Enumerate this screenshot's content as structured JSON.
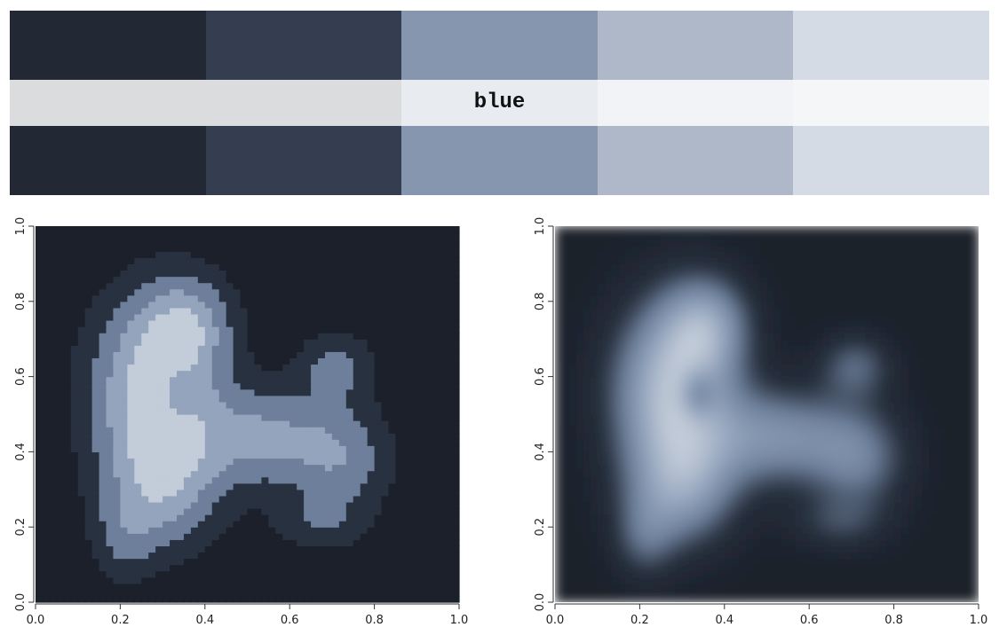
{
  "palette": {
    "label": "blue",
    "colors": [
      "#222834",
      "#343e50",
      "#8596ae",
      "#aeb8c9",
      "#d5dbe5"
    ],
    "light_colors": [
      "#dbdcde",
      "#dbdcde",
      "#e8ebf0",
      "#f1f3f6",
      "#f5f6f8"
    ]
  },
  "chart_data": [
    {
      "type": "heatmap",
      "style": "filled-contour",
      "levels": 5,
      "colors": [
        "#1b202a",
        "#28313f",
        "#6d7f9a",
        "#93a4bc",
        "#c3ccd9"
      ],
      "xlim": [
        0,
        1
      ],
      "ylim": [
        0,
        1
      ],
      "x_ticks": [
        "0.0",
        "0.2",
        "0.4",
        "0.6",
        "0.8",
        "1.0"
      ],
      "y_ticks": [
        "0.0",
        "0.2",
        "0.4",
        "0.6",
        "0.8",
        "1.0"
      ],
      "grid": false,
      "title": "",
      "xlabel": "",
      "ylabel": ""
    },
    {
      "type": "heatmap",
      "style": "continuous",
      "colors": [
        "#1b202a",
        "#28313f",
        "#6d7f9a",
        "#93a4bc",
        "#c3ccd9"
      ],
      "xlim": [
        0,
        1
      ],
      "ylim": [
        0,
        1
      ],
      "x_ticks": [
        "0.0",
        "0.2",
        "0.4",
        "0.6",
        "0.8",
        "1.0"
      ],
      "y_ticks": [
        "0.0",
        "0.2",
        "0.4",
        "0.6",
        "0.8",
        "1.0"
      ],
      "grid": false,
      "title": "",
      "xlabel": "",
      "ylabel": ""
    }
  ]
}
